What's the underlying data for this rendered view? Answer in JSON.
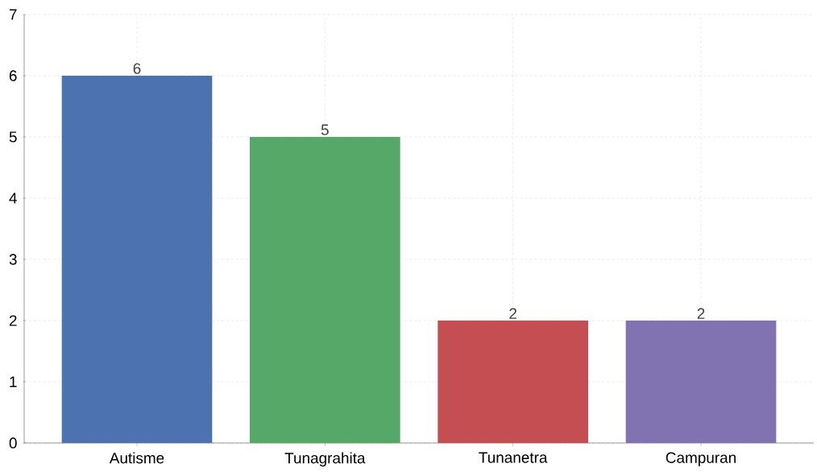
{
  "chart_data": {
    "type": "bar",
    "categories": [
      "Autisme",
      "Tunagrahita",
      "Tunanetra",
      "Campuran"
    ],
    "values": [
      6,
      5,
      2,
      2
    ],
    "colors": [
      "#4c72b0",
      "#55a868",
      "#c44e52",
      "#8172b2"
    ],
    "ylim": [
      0,
      7
    ],
    "yticks": [
      0,
      1,
      2,
      3,
      4,
      5,
      6,
      7
    ],
    "grid": true,
    "data_labels": true
  }
}
